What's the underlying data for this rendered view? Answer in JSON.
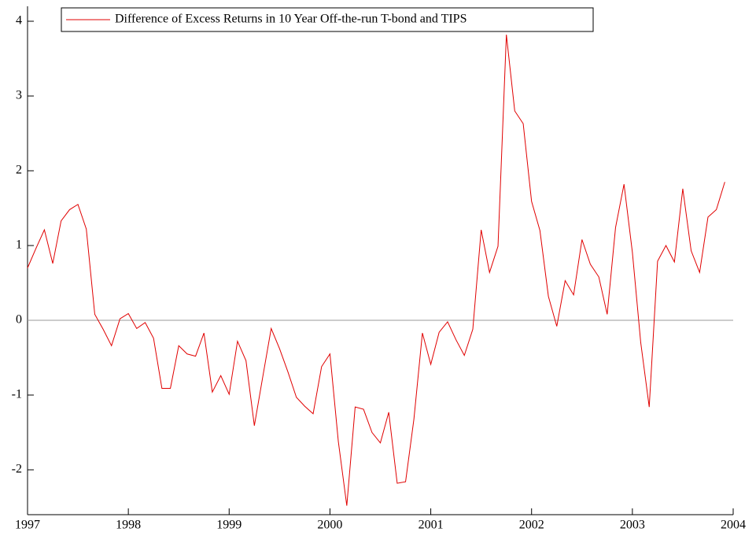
{
  "chart_data": {
    "type": "line",
    "x": [
      1997,
      1997.083,
      1997.167,
      1997.25,
      1997.333,
      1997.417,
      1997.5,
      1997.583,
      1997.667,
      1997.75,
      1997.833,
      1997.917,
      1998,
      1998.083,
      1998.167,
      1998.25,
      1998.333,
      1998.417,
      1998.5,
      1998.583,
      1998.667,
      1998.75,
      1998.833,
      1998.917,
      1999,
      1999.083,
      1999.167,
      1999.25,
      1999.333,
      1999.417,
      1999.5,
      1999.583,
      1999.667,
      1999.75,
      1999.833,
      1999.917,
      2000,
      2000.083,
      2000.167,
      2000.25,
      2000.333,
      2000.417,
      2000.5,
      2000.583,
      2000.667,
      2000.75,
      2000.833,
      2000.917,
      2001,
      2001.083,
      2001.167,
      2001.25,
      2001.333,
      2001.417,
      2001.5,
      2001.583,
      2001.667,
      2001.75,
      2001.833,
      2001.917,
      2002,
      2002.083,
      2002.167,
      2002.25,
      2002.333,
      2002.417,
      2002.5,
      2002.583,
      2002.667,
      2002.75,
      2002.833,
      2002.917,
      2003,
      2003.083,
      2003.167,
      2003.25,
      2003.333,
      2003.417,
      2003.5,
      2003.583,
      2003.667,
      2003.75,
      2003.833,
      2003.917
    ],
    "series": [
      {
        "name": "Difference of Excess Returns in 10 Year Off-the-run T-bond and TIPS",
        "color": "#e00000",
        "values": [
          0.7,
          0.96,
          1.21,
          0.76,
          1.33,
          1.48,
          1.55,
          1.22,
          0.08,
          -0.12,
          -0.34,
          0.02,
          0.09,
          -0.11,
          -0.03,
          -0.24,
          -0.91,
          -0.91,
          -0.34,
          -0.45,
          -0.48,
          -0.17,
          -0.96,
          -0.74,
          -0.99,
          -0.28,
          -0.54,
          -1.41,
          -0.76,
          -0.11,
          -0.38,
          -0.69,
          -1.03,
          -1.15,
          -1.25,
          -0.62,
          -0.45,
          -1.62,
          -2.48,
          -1.16,
          -1.19,
          -1.5,
          -1.64,
          -1.23,
          -2.18,
          -2.16,
          -1.32,
          -0.17,
          -0.59,
          -0.16,
          -0.02,
          -0.26,
          -0.47,
          -0.12,
          1.21,
          0.64,
          0.99,
          3.82,
          2.8,
          2.63,
          1.59,
          1.2,
          0.32,
          -0.08,
          0.53,
          0.34,
          1.08,
          0.75,
          0.58,
          0.08,
          1.24,
          1.82,
          0.91,
          -0.3,
          -1.16,
          0.79,
          1.0,
          0.78,
          1.76,
          0.93,
          0.64,
          1.38,
          1.48,
          1.85
        ]
      }
    ],
    "xlim": [
      1997,
      2004
    ],
    "xticks": [
      1997,
      1998,
      1999,
      2000,
      2001,
      2002,
      2003,
      2004
    ],
    "ylim": [
      -2.6,
      4.2
    ],
    "yticks": [
      -2,
      -1,
      0,
      1,
      2,
      3,
      4
    ],
    "zero_line": true
  }
}
